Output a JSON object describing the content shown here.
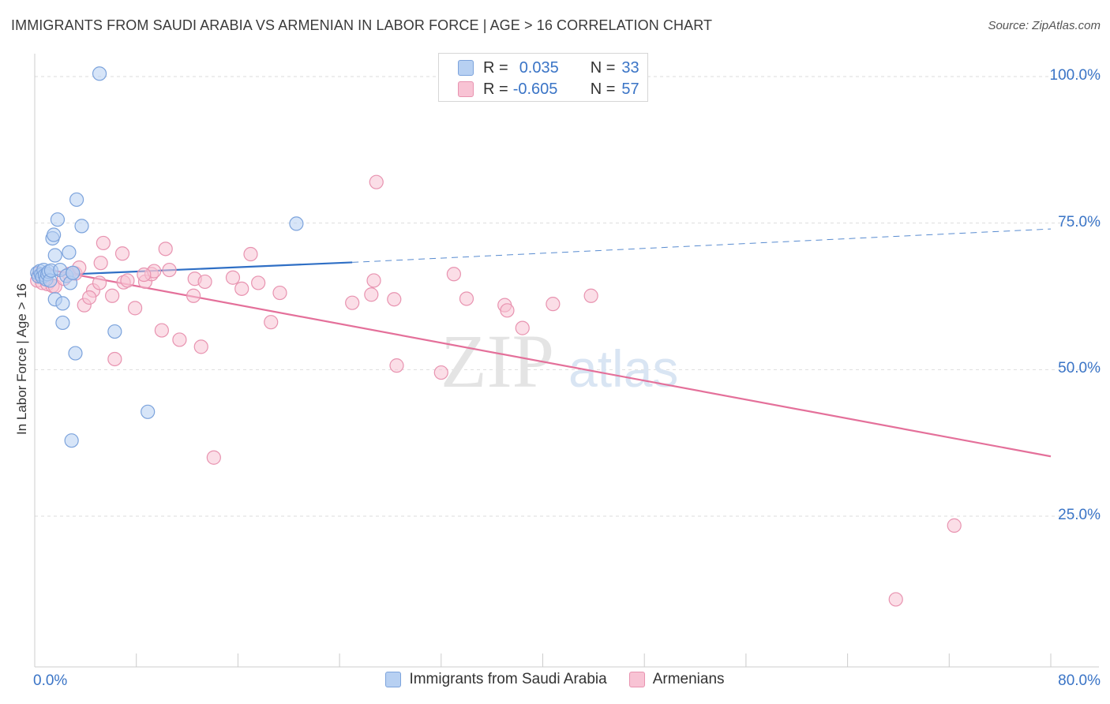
{
  "title": "IMMIGRANTS FROM SAUDI ARABIA VS ARMENIAN IN LABOR FORCE | AGE > 16 CORRELATION CHART",
  "source": "Source: ZipAtlas.com",
  "watermark": {
    "zip": "ZIP",
    "atlas": "atlas"
  },
  "legend_box": {
    "rows": [
      {
        "r_label": "R =",
        "r_value": "0.035",
        "n_label": "N =",
        "n_value": "33"
      },
      {
        "r_label": "R =",
        "r_value": "-0.605",
        "n_label": "N =",
        "n_value": "57"
      }
    ]
  },
  "colors": {
    "blue_fill": "#b7d0f2",
    "blue_stroke": "#7ca3dc",
    "blue_line": "#2f6fc5",
    "pink_fill": "#f8c3d4",
    "pink_stroke": "#e893b0",
    "pink_line": "#e4709a",
    "axis_label": "#3a74c6",
    "grid": "#dddddd"
  },
  "chart_data": {
    "type": "scatter",
    "title": "IMMIGRANTS FROM SAUDI ARABIA VS ARMENIAN IN LABOR FORCE | AGE > 16 CORRELATION CHART",
    "xlabel": "",
    "ylabel": "In Labor Force | Age > 16",
    "xlim": [
      0,
      80
    ],
    "ylim": [
      0,
      101
    ],
    "x_tick_labels": [
      {
        "value": 0,
        "label": "0.0%"
      },
      {
        "value": 80,
        "label": "80.0%"
      }
    ],
    "y_tick_labels": [
      {
        "value": 100,
        "label": "100.0%"
      },
      {
        "value": 75,
        "label": "75.0%"
      },
      {
        "value": 50,
        "label": "50.0%"
      },
      {
        "value": 25,
        "label": "25.0%"
      }
    ],
    "x_minor_ticks": [
      8,
      16,
      24,
      32,
      40,
      48,
      56,
      64,
      72
    ],
    "series": [
      {
        "name": "Immigrants from Saudi Arabia",
        "color": "blue",
        "r": 0.035,
        "n": 33,
        "trend": {
          "x0": 0,
          "y0": 66.0,
          "x1": 25,
          "y1": 68.3,
          "dashed_to_x": 80,
          "dashed_to_y": 74.0
        },
        "points": [
          [
            0.2,
            66.5
          ],
          [
            0.3,
            65.9
          ],
          [
            0.4,
            66.8
          ],
          [
            0.5,
            66.2
          ],
          [
            0.6,
            65.8
          ],
          [
            0.7,
            67.0
          ],
          [
            0.8,
            66.1
          ],
          [
            0.9,
            65.4
          ],
          [
            1.0,
            66.3
          ],
          [
            1.1,
            66.7
          ],
          [
            1.2,
            65.2
          ],
          [
            1.3,
            66.9
          ],
          [
            1.4,
            72.4
          ],
          [
            1.5,
            73.0
          ],
          [
            1.6,
            69.5
          ],
          [
            1.6,
            62.0
          ],
          [
            1.8,
            75.6
          ],
          [
            2.0,
            67.0
          ],
          [
            2.2,
            58.0
          ],
          [
            2.2,
            61.3
          ],
          [
            2.5,
            66.0
          ],
          [
            2.7,
            70.0
          ],
          [
            2.8,
            64.8
          ],
          [
            3.0,
            66.5
          ],
          [
            3.2,
            52.8
          ],
          [
            3.3,
            79.0
          ],
          [
            3.7,
            74.5
          ],
          [
            5.1,
            100.5
          ],
          [
            6.3,
            56.5
          ],
          [
            8.9,
            42.8
          ],
          [
            2.9,
            37.9
          ],
          [
            20.6,
            74.9
          ],
          [
            3.0,
            66.5
          ]
        ]
      },
      {
        "name": "Armenians",
        "color": "pink",
        "r": -0.605,
        "n": 57,
        "trend": {
          "x0": 0,
          "y0": 67.5,
          "x1": 80,
          "y1": 35.2
        },
        "points": [
          [
            0.2,
            65.2
          ],
          [
            0.3,
            66.0
          ],
          [
            0.6,
            64.8
          ],
          [
            1.0,
            64.6
          ],
          [
            1.4,
            64.3
          ],
          [
            2.7,
            66.3
          ],
          [
            3.2,
            66.4
          ],
          [
            3.5,
            67.4
          ],
          [
            3.9,
            61.0
          ],
          [
            4.6,
            63.5
          ],
          [
            4.3,
            62.3
          ],
          [
            5.1,
            64.8
          ],
          [
            5.2,
            68.2
          ],
          [
            5.4,
            71.6
          ],
          [
            6.1,
            62.6
          ],
          [
            6.3,
            51.8
          ],
          [
            6.9,
            69.8
          ],
          [
            7.0,
            64.9
          ],
          [
            7.3,
            65.2
          ],
          [
            7.9,
            60.5
          ],
          [
            8.7,
            65.0
          ],
          [
            9.2,
            66.3
          ],
          [
            9.4,
            66.8
          ],
          [
            10.0,
            56.7
          ],
          [
            10.3,
            70.6
          ],
          [
            10.6,
            67.0
          ],
          [
            11.4,
            55.1
          ],
          [
            12.5,
            62.6
          ],
          [
            12.6,
            65.5
          ],
          [
            13.1,
            53.9
          ],
          [
            13.4,
            65.0
          ],
          [
            14.1,
            35.0
          ],
          [
            15.6,
            65.7
          ],
          [
            16.3,
            63.8
          ],
          [
            17.0,
            69.7
          ],
          [
            17.6,
            64.8
          ],
          [
            18.6,
            58.1
          ],
          [
            19.3,
            63.1
          ],
          [
            25.0,
            61.4
          ],
          [
            26.9,
            82.0
          ],
          [
            26.5,
            62.8
          ],
          [
            26.7,
            65.2
          ],
          [
            28.3,
            62.0
          ],
          [
            28.5,
            50.7
          ],
          [
            32.0,
            49.5
          ],
          [
            33.0,
            66.3
          ],
          [
            34.0,
            62.1
          ],
          [
            37.0,
            61.0
          ],
          [
            37.2,
            60.1
          ],
          [
            38.4,
            57.1
          ],
          [
            40.8,
            61.2
          ],
          [
            43.8,
            62.6
          ],
          [
            72.4,
            23.4
          ],
          [
            67.8,
            10.8
          ],
          [
            1.6,
            64.2
          ],
          [
            8.6,
            66.2
          ],
          [
            2.3,
            65.5
          ]
        ]
      }
    ]
  }
}
